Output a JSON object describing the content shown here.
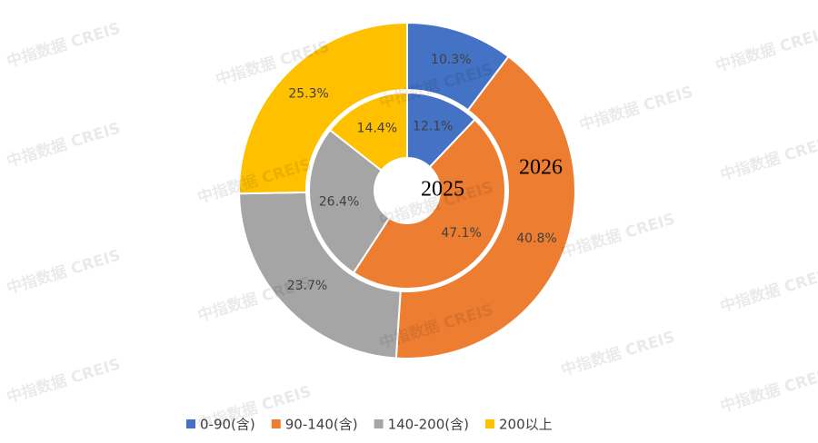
{
  "chart_data": {
    "type": "donut",
    "categories": [
      "0-90(含)",
      "90-140(含)",
      "140-200(含)",
      "200以上"
    ],
    "colors": [
      "#4472c4",
      "#ed7d31",
      "#a5a5a5",
      "#ffc000"
    ],
    "series": [
      {
        "name": "2025",
        "values": [
          12.1,
          47.1,
          26.4,
          14.4
        ],
        "value_labels": [
          "12.1%",
          "47.1%",
          "26.4%",
          "14.4%"
        ]
      },
      {
        "name": "2026",
        "values": [
          10.3,
          40.8,
          23.7,
          25.3
        ],
        "value_labels": [
          "10.3%",
          "40.8%",
          "23.7%",
          "25.3%"
        ]
      }
    ],
    "legend": "bottom",
    "watermark": "中指数据 CREIS"
  }
}
